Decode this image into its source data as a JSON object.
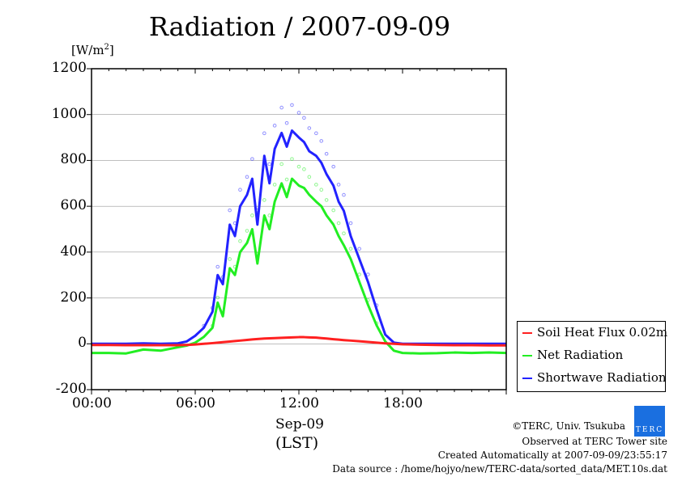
{
  "chart_data": {
    "type": "line",
    "title": "Radiation / 2007-09-09",
    "ylabel": "[W/m2]",
    "xlabel": "Sep-09",
    "xlabel2": "(LST)",
    "xlim": [
      0,
      24
    ],
    "ylim": [
      -200,
      1200
    ],
    "yticks": [
      -200,
      0,
      200,
      400,
      600,
      800,
      1000,
      1200
    ],
    "ytick_labels": [
      "-200",
      "0",
      "200",
      "400",
      "600",
      "800",
      "1000",
      "1200"
    ],
    "xticks": [
      0,
      6,
      12,
      18
    ],
    "xtick_labels": [
      "00:00",
      "06:00",
      "12:00",
      "18:00"
    ],
    "grid": true,
    "legend_position": "right",
    "x": [
      0,
      1,
      2,
      3,
      4,
      5,
      5.5,
      6,
      6.5,
      7,
      7.3,
      7.6,
      8,
      8.3,
      8.6,
      9,
      9.3,
      9.6,
      10,
      10.3,
      10.6,
      11,
      11.3,
      11.6,
      12,
      12.3,
      12.6,
      13,
      13.3,
      13.6,
      14,
      14.3,
      14.6,
      15,
      15.5,
      16,
      16.5,
      17,
      17.5,
      18,
      19,
      20,
      21,
      22,
      23,
      24
    ],
    "series": [
      {
        "name": "Soil Heat Flux 0.02m",
        "color": "#ff2020",
        "values": [
          -5,
          -5,
          -6,
          -6,
          -6,
          -6,
          -5,
          -3,
          0,
          3,
          5,
          7,
          10,
          12,
          14,
          17,
          19,
          21,
          23,
          24,
          25,
          26,
          27,
          28,
          29,
          29,
          28,
          27,
          25,
          23,
          20,
          18,
          16,
          14,
          11,
          8,
          5,
          2,
          0,
          -2,
          -4,
          -5,
          -6,
          -6,
          -7,
          -7
        ]
      },
      {
        "name": "Net Radiation",
        "color": "#22ee22",
        "values": [
          -40,
          -40,
          -42,
          -25,
          -30,
          -15,
          -8,
          5,
          30,
          70,
          180,
          120,
          330,
          300,
          400,
          440,
          500,
          350,
          560,
          500,
          620,
          700,
          640,
          720,
          690,
          680,
          650,
          620,
          600,
          560,
          520,
          470,
          430,
          370,
          270,
          170,
          80,
          10,
          -30,
          -40,
          -42,
          -41,
          -38,
          -40,
          -38,
          -40
        ]
      },
      {
        "name": "Shortwave Radiation",
        "color": "#2222ff",
        "values": [
          0,
          0,
          0,
          2,
          0,
          2,
          10,
          35,
          70,
          140,
          300,
          260,
          520,
          470,
          600,
          650,
          720,
          520,
          820,
          700,
          850,
          920,
          860,
          930,
          900,
          880,
          840,
          820,
          790,
          740,
          690,
          620,
          580,
          470,
          370,
          270,
          150,
          40,
          5,
          0,
          0,
          0,
          0,
          0,
          0,
          0
        ]
      }
    ]
  },
  "footer": {
    "copyright": "©TERC, Univ. Tsukuba",
    "logo_text": "TERC",
    "observed": "Observed at TERC Tower site",
    "created": "Created Automatically at 2007-09-09/23:55:17",
    "source": "Data source : /home/hojyo/new/TERC-data/sorted_data/MET.10s.dat"
  }
}
